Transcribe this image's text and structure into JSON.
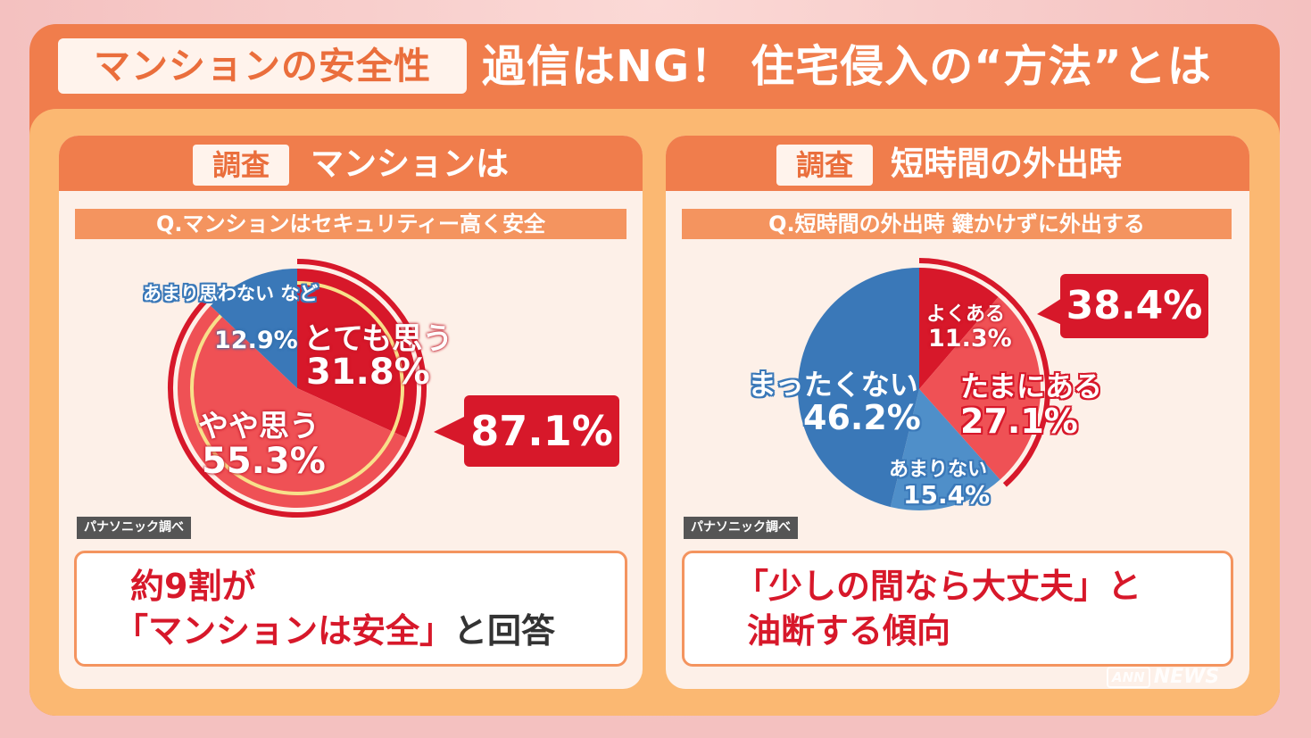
{
  "header": {
    "badge": "マンションの安全性",
    "title": "過信はNG！ 住宅侵入の“方法”とは"
  },
  "left": {
    "tag": "調査",
    "heading": "マンションは",
    "question": "Q.マンションはセキュリティー高く安全",
    "source": "パナソニック調べ",
    "callout": "87.1%",
    "summary_line1": "約9割が",
    "summary_line2_red": "「マンションは安全」",
    "summary_line2_dark": "と回答"
  },
  "right": {
    "tag": "調査",
    "heading": "短時間の外出時",
    "question": "Q.短時間の外出時 鍵かけずに外出する",
    "source": "パナソニック調べ",
    "callout": "38.4%",
    "summary_line1": "「少しの間なら大丈夫」と",
    "summary_line2": "油断する傾向"
  },
  "watermark": {
    "box": "ANN",
    "text": "NEWS"
  },
  "colors": {
    "orange": "#f07d4c",
    "red": "#d7182a",
    "light_red": "#ef5155",
    "blue": "#3a78b8",
    "light_blue": "#4f8fc9",
    "cream": "#fdf0e8"
  },
  "chart_data": [
    {
      "type": "pie",
      "title": "Q.マンションはセキュリティー高く安全",
      "slices": [
        {
          "label": "とても思う",
          "value": 31.8,
          "text": "31.8%",
          "color": "#d7182a"
        },
        {
          "label": "やや思う",
          "value": 55.3,
          "text": "55.3%",
          "color": "#ef5155"
        },
        {
          "label": "あまり思わない など",
          "value": 12.9,
          "text": "12.9%",
          "color": "#3a78b8"
        }
      ],
      "highlight": {
        "label": "87.1%",
        "value": 87.1
      }
    },
    {
      "type": "pie",
      "title": "Q.短時間の外出時 鍵かけずに外出する",
      "slices": [
        {
          "label": "よくある",
          "value": 11.3,
          "text": "11.3%",
          "color": "#d7182a"
        },
        {
          "label": "たまにある",
          "value": 27.1,
          "text": "27.1%",
          "color": "#ef5155"
        },
        {
          "label": "あまりない",
          "value": 15.4,
          "text": "15.4%",
          "color": "#4f8fc9"
        },
        {
          "label": "まったくない",
          "value": 46.2,
          "text": "46.2%",
          "color": "#3a78b8"
        }
      ],
      "highlight": {
        "label": "38.4%",
        "value": 38.4
      }
    }
  ]
}
